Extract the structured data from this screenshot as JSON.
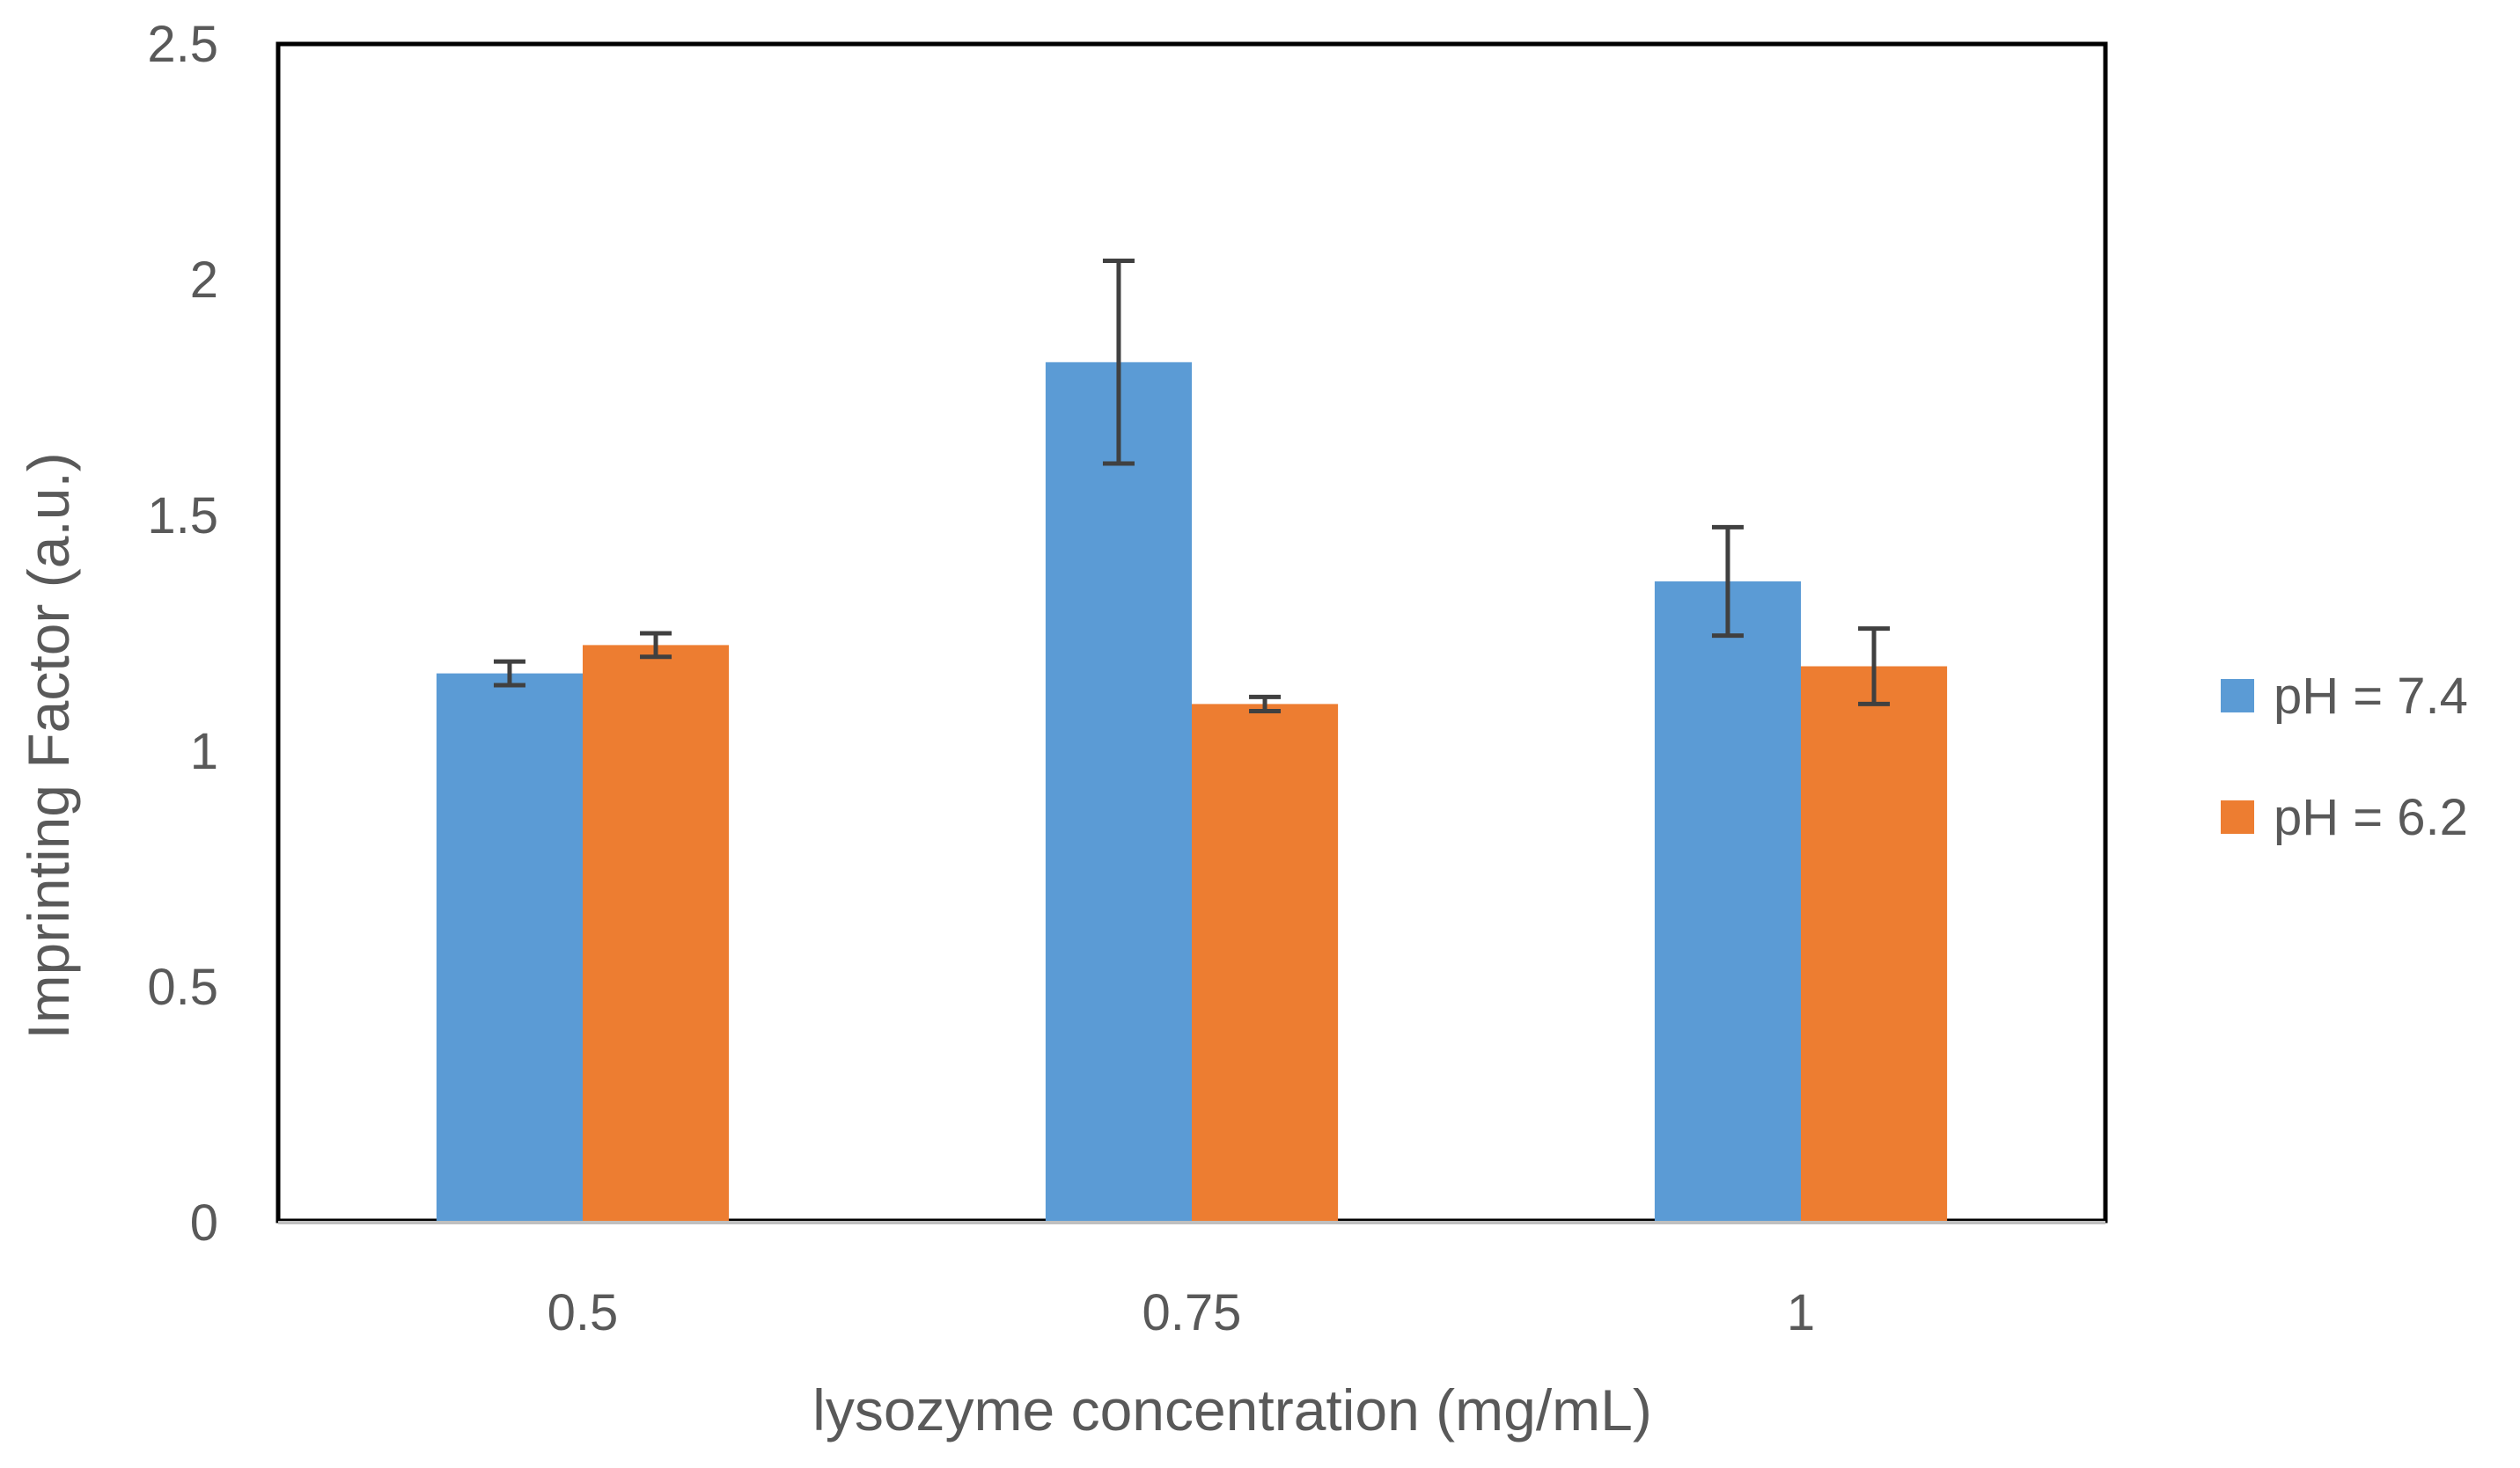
{
  "chart_data": {
    "type": "bar",
    "title": "",
    "xlabel": "lysozyme concentration (mg/mL)",
    "ylabel": "Imprinting Factor (a.u.)",
    "categories": [
      "0.5",
      "0.75",
      "1"
    ],
    "ylim": [
      0,
      2.5
    ],
    "yticks": [
      0,
      0.5,
      1,
      1.5,
      2,
      2.5
    ],
    "ytick_labels": [
      "0",
      "0.5",
      "1",
      "1.5",
      "2",
      "2.5"
    ],
    "grid": false,
    "legend_position": "right",
    "series": [
      {
        "name": "pH = 7.4",
        "color": "#5B9BD5",
        "values": [
          1.165,
          1.825,
          1.36
        ],
        "errors": [
          0.025,
          0.215,
          0.115
        ]
      },
      {
        "name": "pH = 6.2",
        "color": "#ED7D31",
        "values": [
          1.225,
          1.1,
          1.18
        ],
        "errors": [
          0.025,
          0.015,
          0.08
        ]
      }
    ]
  }
}
